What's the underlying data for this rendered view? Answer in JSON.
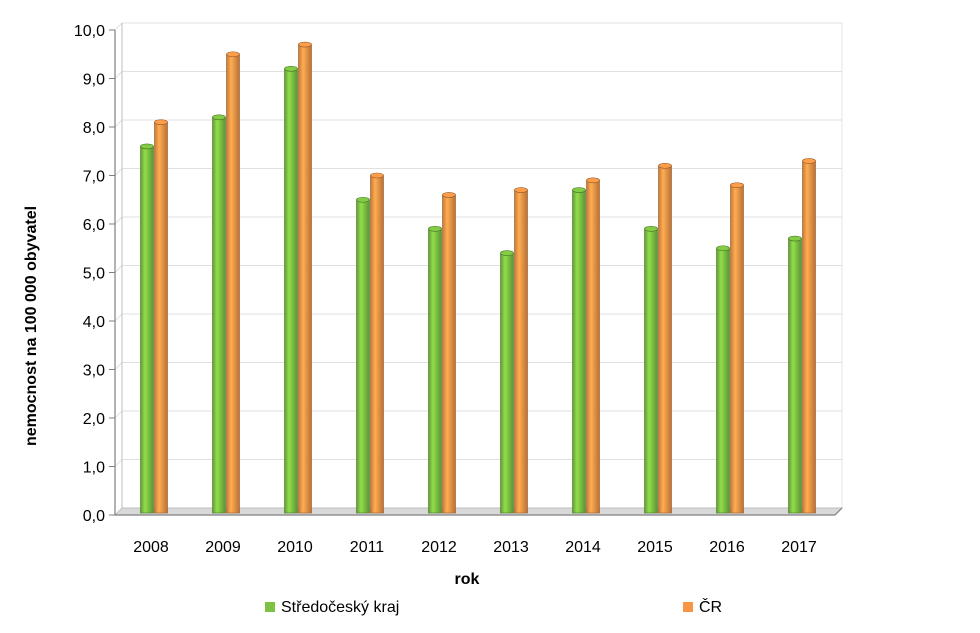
{
  "chart_data": {
    "type": "bar",
    "categories": [
      "2008",
      "2009",
      "2010",
      "2011",
      "2012",
      "2013",
      "2014",
      "2015",
      "2016",
      "2017"
    ],
    "series": [
      {
        "name": "Středočeský kraj",
        "color": "#7dc242",
        "values": [
          7.6,
          8.2,
          9.2,
          6.5,
          5.9,
          5.4,
          6.7,
          5.9,
          5.5,
          5.7
        ]
      },
      {
        "name": "ČR",
        "color": "#f79646",
        "values": [
          8.1,
          9.5,
          9.7,
          7.0,
          6.6,
          6.7,
          6.9,
          7.2,
          6.8,
          7.3
        ]
      }
    ],
    "yticks": [
      "0,0",
      "1,0",
      "2,0",
      "3,0",
      "4,0",
      "5,0",
      "6,0",
      "7,0",
      "8,0",
      "9,0",
      "10,0"
    ],
    "ylim": [
      0,
      10
    ],
    "xlabel": "rok",
    "ylabel": "nemocnost na 100 000 obyvatel",
    "grid": true,
    "legend_position": "bottom"
  }
}
